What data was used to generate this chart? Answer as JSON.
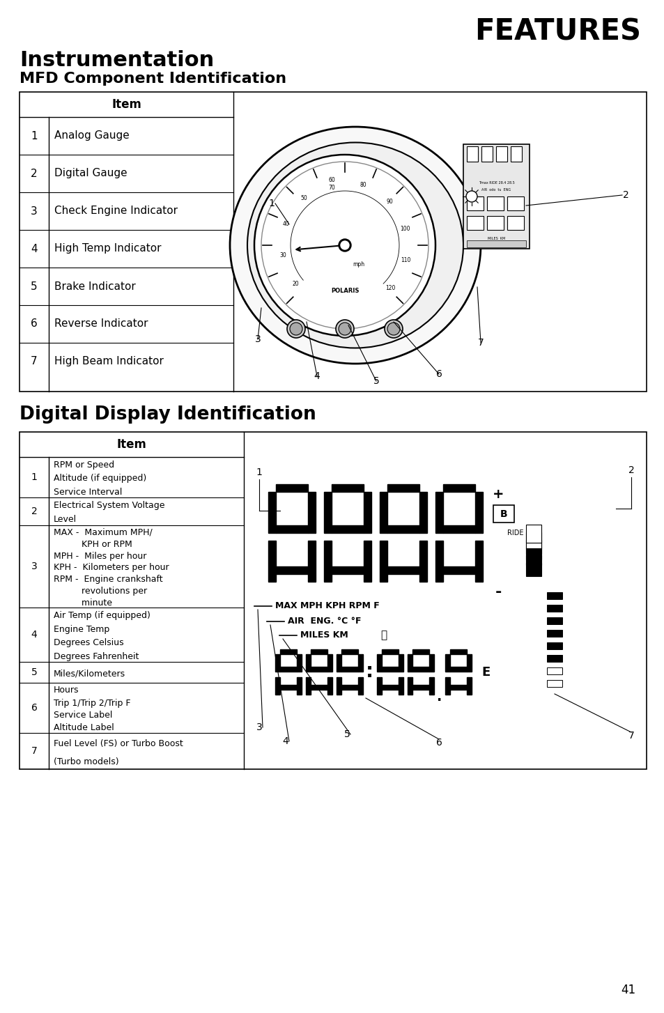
{
  "page_title": "FEATURES",
  "section1_title": "Instrumentation",
  "section1_subtitle": "MFD Component Identification",
  "table1_header": "Item",
  "table1_rows": [
    [
      "1",
      "Analog Gauge"
    ],
    [
      "2",
      "Digital Gauge"
    ],
    [
      "3",
      "Check Engine Indicator"
    ],
    [
      "4",
      "High Temp Indicator"
    ],
    [
      "5",
      "Brake Indicator"
    ],
    [
      "6",
      "Reverse Indicator"
    ],
    [
      "7",
      "High Beam Indicator"
    ]
  ],
  "section2_title": "Digital Display Identification",
  "table2_header": "Item",
  "table2_rows": [
    [
      "1",
      "RPM or Speed\nAltitude (if equipped)\nService Interval"
    ],
    [
      "2",
      "Electrical System Voltage\nLevel"
    ],
    [
      "3",
      "MAX -  Maximum MPH/\n          KPH or RPM\nMPH -  Miles per hour\nKPH -  Kilometers per hour\nRPM -  Engine crankshaft\n          revolutions per\n          minute"
    ],
    [
      "4",
      "Air Temp (if equipped)\nEngine Temp\nDegrees Celsius\nDegrees Fahrenheit"
    ],
    [
      "5",
      "Miles/Kilometers"
    ],
    [
      "6",
      "Hours\nTrip 1/Trip 2/Trip F\nService Label\nAltitude Label"
    ],
    [
      "7",
      "Fuel Level (FS) or Turbo Boost\n(Turbo models)"
    ]
  ],
  "page_number": "41",
  "bg_color": "#ffffff",
  "text_color": "#000000"
}
